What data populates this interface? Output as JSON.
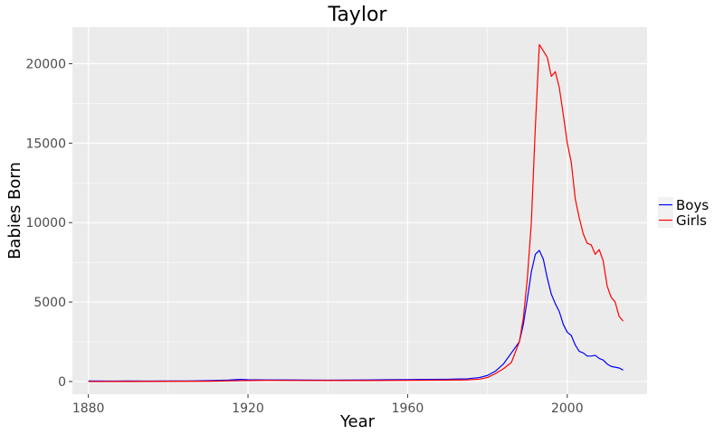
{
  "chart_data": {
    "type": "line",
    "title": "Taylor",
    "xlabel": "Year",
    "ylabel": "Babies Born",
    "xlim": [
      1876,
      2020
    ],
    "ylim": [
      -800,
      22300
    ],
    "x_ticks": [
      1880,
      1920,
      1960,
      2000
    ],
    "y_ticks": [
      0,
      5000,
      10000,
      15000,
      20000
    ],
    "x_tick_labels": [
      "1880",
      "1920",
      "1960",
      "2000"
    ],
    "y_tick_labels": [
      "0",
      "5000",
      "10000",
      "15000",
      "20000"
    ],
    "grid": true,
    "legend_position": "right",
    "panel_background": "#ebebeb",
    "gridline_color": "#ffffff",
    "series": [
      {
        "name": "Boys",
        "color": "#0000ff",
        "x": [
          1880,
          1885,
          1890,
          1895,
          1900,
          1905,
          1910,
          1915,
          1918,
          1920,
          1925,
          1930,
          1935,
          1940,
          1945,
          1950,
          1955,
          1960,
          1965,
          1970,
          1975,
          1978,
          1980,
          1982,
          1984,
          1986,
          1988,
          1989,
          1990,
          1991,
          1992,
          1993,
          1994,
          1995,
          1996,
          1997,
          1998,
          1999,
          2000,
          2001,
          2002,
          2003,
          2004,
          2005,
          2006,
          2007,
          2008,
          2009,
          2010,
          2011,
          2012,
          2013,
          2014
        ],
        "y": [
          30,
          25,
          30,
          25,
          30,
          35,
          55,
          90,
          130,
          110,
          100,
          95,
          90,
          85,
          90,
          100,
          110,
          120,
          130,
          140,
          170,
          250,
          380,
          650,
          1100,
          1800,
          2500,
          3600,
          5200,
          6900,
          8000,
          8250,
          7700,
          6500,
          5500,
          4900,
          4400,
          3600,
          3100,
          2900,
          2300,
          1900,
          1800,
          1600,
          1600,
          1650,
          1450,
          1350,
          1100,
          950,
          900,
          850,
          720
        ]
      },
      {
        "name": "Girls",
        "color": "#ff0000",
        "x": [
          1880,
          1890,
          1900,
          1910,
          1915,
          1920,
          1925,
          1930,
          1940,
          1950,
          1960,
          1970,
          1975,
          1978,
          1980,
          1982,
          1984,
          1986,
          1988,
          1989,
          1990,
          1991,
          1992,
          1993,
          1994,
          1995,
          1996,
          1997,
          1998,
          1999,
          2000,
          2001,
          2002,
          2003,
          2004,
          2005,
          2006,
          2007,
          2008,
          2009,
          2010,
          2011,
          2012,
          2013,
          2014
        ],
        "y": [
          0,
          5,
          10,
          20,
          40,
          60,
          70,
          65,
          60,
          60,
          70,
          90,
          100,
          150,
          250,
          500,
          800,
          1200,
          2500,
          4000,
          6500,
          10000,
          16000,
          21200,
          20800,
          20400,
          19200,
          19500,
          18500,
          16800,
          15000,
          13800,
          11500,
          10300,
          9300,
          8700,
          8600,
          8000,
          8300,
          7600,
          6000,
          5300,
          5000,
          4100,
          3800
        ]
      }
    ]
  }
}
